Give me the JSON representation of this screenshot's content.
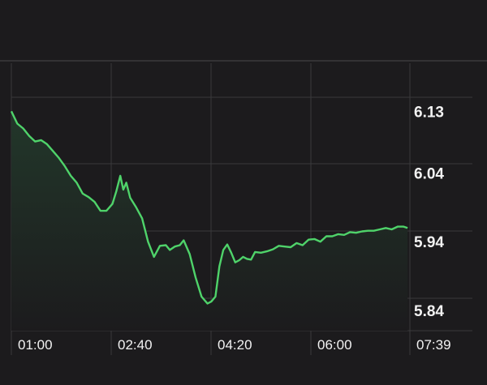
{
  "colors": {
    "background": "#1c1b1d",
    "grid": "#3a393c",
    "top_rule": "#4a494c",
    "line": "#4fd36a",
    "area_fill_top": "#22372a",
    "area_fill_bottom": "#1c1b1d",
    "label": "#f2f2f2"
  },
  "chart_data": {
    "type": "area",
    "title": "",
    "xlabel": "",
    "ylabel": "",
    "x_tick_labels": [
      "01:00",
      "02:40",
      "04:20",
      "06:00",
      "07:39"
    ],
    "y_tick_labels": [
      "6.13",
      "6.04",
      "5.94",
      "5.84"
    ],
    "y_ticks": [
      6.13,
      6.04,
      5.94,
      5.84
    ],
    "x_range": [
      "00:55",
      "07:39"
    ],
    "ylim": [
      5.805,
      6.215
    ],
    "grid": true,
    "legend": "none",
    "series": [
      {
        "x": [
          "00:55",
          "01:01",
          "01:07",
          "01:13",
          "01:19",
          "01:25",
          "01:31",
          "01:37",
          "01:43",
          "01:49",
          "01:55",
          "02:01",
          "02:07",
          "02:13",
          "02:19",
          "02:25",
          "02:31",
          "02:37",
          "02:41",
          "02:45",
          "02:48",
          "02:51",
          "02:55",
          "03:01",
          "03:07",
          "03:13",
          "03:19",
          "03:25",
          "03:31",
          "03:35",
          "03:40",
          "03:45",
          "03:49",
          "03:55",
          "04:01",
          "04:07",
          "04:13",
          "04:17",
          "04:21",
          "04:25",
          "04:29",
          "04:33",
          "04:37",
          "04:41",
          "04:45",
          "04:49",
          "04:53",
          "04:57",
          "05:01",
          "05:07",
          "05:13",
          "05:19",
          "05:25",
          "05:31",
          "05:37",
          "05:43",
          "05:49",
          "05:55",
          "06:01",
          "06:07",
          "06:13",
          "06:19",
          "06:25",
          "06:31",
          "06:37",
          "06:43",
          "06:49",
          "06:55",
          "07:01",
          "07:07",
          "07:13",
          "07:19",
          "07:25",
          "07:31",
          "07:35"
        ],
        "values": [
          6.13,
          6.112,
          6.105,
          6.094,
          6.086,
          6.088,
          6.082,
          6.072,
          6.062,
          6.05,
          6.036,
          6.026,
          6.01,
          6.005,
          5.998,
          5.985,
          5.985,
          5.995,
          6.014,
          6.036,
          6.016,
          6.026,
          6.004,
          5.99,
          5.974,
          5.94,
          5.918,
          5.934,
          5.935,
          5.928,
          5.933,
          5.935,
          5.942,
          5.922,
          5.888,
          5.86,
          5.85,
          5.853,
          5.86,
          5.904,
          5.928,
          5.936,
          5.924,
          5.91,
          5.913,
          5.918,
          5.915,
          5.914,
          5.925,
          5.924,
          5.926,
          5.929,
          5.934,
          5.933,
          5.932,
          5.938,
          5.935,
          5.943,
          5.944,
          5.94,
          5.948,
          5.948,
          5.951,
          5.95,
          5.954,
          5.953,
          5.955,
          5.956,
          5.956,
          5.958,
          5.96,
          5.958,
          5.962,
          5.962,
          5.96
        ]
      }
    ]
  }
}
